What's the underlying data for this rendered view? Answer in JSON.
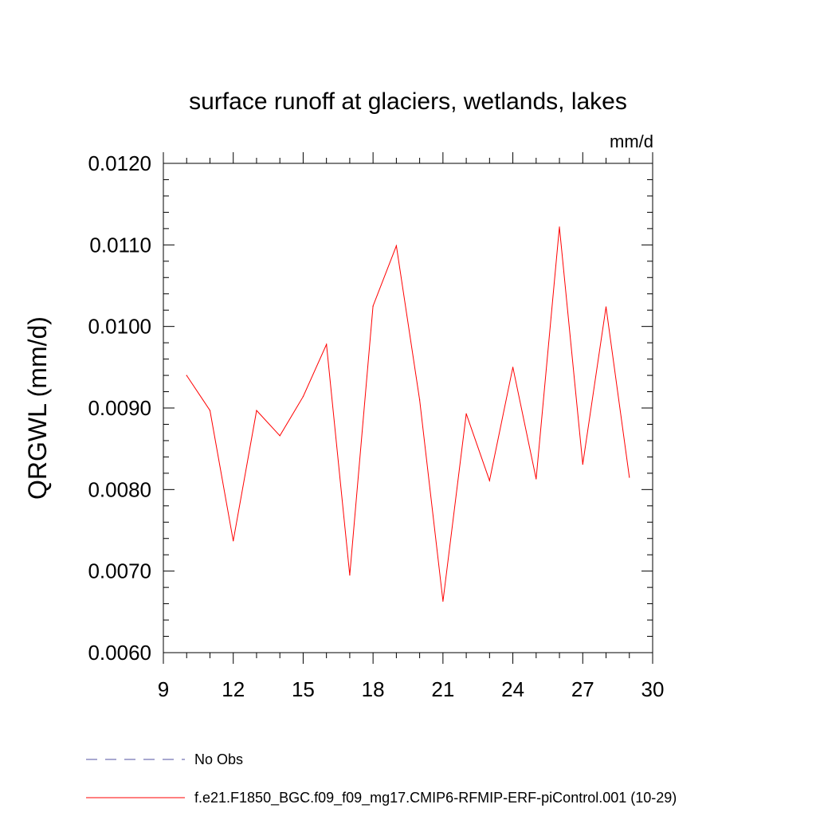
{
  "chart_data": {
    "type": "line",
    "title": "surface runoff at glaciers, wetlands, lakes",
    "units": "mm/d",
    "ylabel": "QRGWL  (mm/d)",
    "xlabel": "",
    "xlim": [
      9,
      30
    ],
    "ylim": [
      0.006,
      0.012
    ],
    "x_ticks": [
      "9",
      "12",
      "15",
      "18",
      "21",
      "24",
      "27",
      "30"
    ],
    "y_ticks": [
      "0.0060",
      "0.0070",
      "0.0080",
      "0.0090",
      "0.0100",
      "0.0110",
      "0.0120"
    ],
    "grid": false,
    "series": [
      {
        "name": "f.e21.F1850_BGC.f09_f09_mg17.CMIP6-RFMIP-ERF-piControl.001 (10-29)",
        "color": "#ff0000",
        "x": [
          10,
          11,
          12,
          13,
          14,
          15,
          16,
          17,
          18,
          19,
          20,
          21,
          22,
          23,
          24,
          25,
          26,
          27,
          28,
          29
        ],
        "y": [
          0.0094,
          0.00897,
          0.00737,
          0.00897,
          0.00866,
          0.00914,
          0.00978,
          0.00695,
          0.01025,
          0.01099,
          0.0091,
          0.00663,
          0.00893,
          0.00811,
          0.0095,
          0.00813,
          0.01122,
          0.00831,
          0.01024,
          0.00815
        ]
      }
    ],
    "legend": [
      {
        "label": "No Obs",
        "color": "#5050a0",
        "style": "dashed"
      },
      {
        "label": "f.e21.F1850_BGC.f09_f09_mg17.CMIP6-RFMIP-ERF-piControl.001 (10-29)",
        "color": "#ff0000",
        "style": "solid"
      }
    ],
    "legend_position": "bottom-left"
  }
}
